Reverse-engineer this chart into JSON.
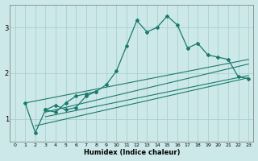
{
  "xlabel": "Humidex (Indice chaleur)",
  "bg_color": "#cce8e8",
  "line_color": "#1a7a6e",
  "grid_color": "#aacfcf",
  "xlim": [
    -0.5,
    23.5
  ],
  "ylim": [
    0.5,
    3.5
  ],
  "yticks": [
    1,
    2,
    3
  ],
  "xticks": [
    0,
    1,
    2,
    3,
    4,
    5,
    6,
    7,
    8,
    9,
    10,
    11,
    12,
    13,
    14,
    15,
    16,
    17,
    18,
    19,
    20,
    21,
    22,
    23
  ],
  "line1_x": [
    1,
    2,
    3,
    4,
    5,
    6,
    7,
    8,
    9,
    10,
    11,
    12,
    13,
    14,
    15,
    16,
    17,
    18,
    19,
    20,
    21,
    22,
    23
  ],
  "line1_y": [
    1.35,
    0.7,
    1.2,
    1.15,
    1.35,
    1.5,
    1.55,
    1.6,
    1.75,
    2.05,
    2.6,
    3.15,
    2.9,
    3.0,
    3.25,
    3.05,
    2.55,
    2.65,
    2.4,
    2.35,
    2.3,
    1.92,
    1.88
  ],
  "line2_x": [
    3,
    4,
    5,
    6,
    7,
    8
  ],
  "line2_y": [
    1.2,
    1.3,
    1.2,
    1.25,
    1.5,
    1.6
  ],
  "line3_x": [
    1,
    23
  ],
  "line3_y": [
    1.35,
    2.3
  ],
  "line4_x": [
    3,
    23
  ],
  "line4_y": [
    1.15,
    2.2
  ],
  "line5_x": [
    3,
    23
  ],
  "line5_y": [
    1.05,
    1.95
  ],
  "line6_x": [
    2,
    23
  ],
  "line6_y": [
    0.85,
    1.9
  ]
}
